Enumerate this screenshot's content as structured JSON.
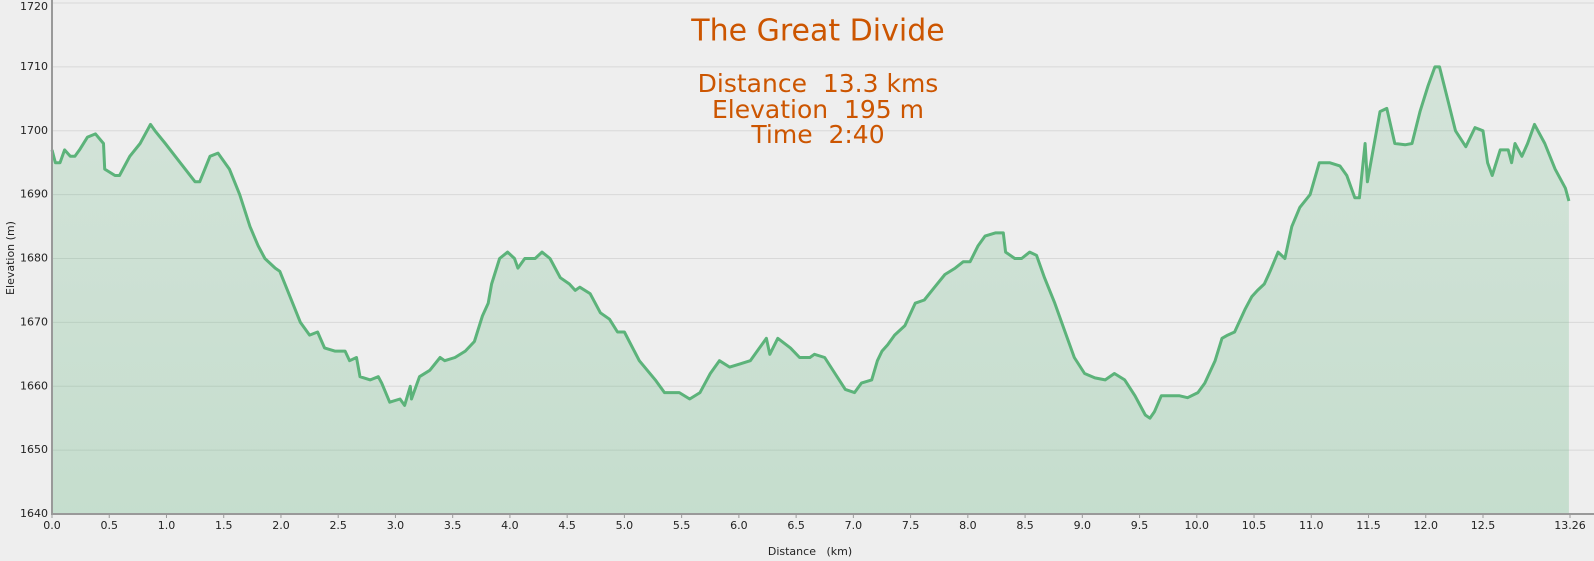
{
  "chart_data": {
    "type": "area",
    "title": "The Great Divide",
    "annotations": [
      "Distance  13.3 kms",
      "Elevation  195 m",
      "Time  2:40"
    ],
    "x_label": "Distance   (km)",
    "y_label": "Elevation (m)",
    "color": "#5cb37a",
    "grid": true,
    "xlim": [
      0,
      13.26
    ],
    "ylim": [
      1640,
      1720
    ],
    "yticks": [
      1640,
      1650,
      1660,
      1670,
      1680,
      1690,
      1700,
      1710,
      1720
    ],
    "xticks": [
      {
        "value": 0,
        "label": "0.0"
      },
      0.5,
      {
        "value": 1,
        "label": "1.0"
      },
      1.5,
      {
        "value": 2,
        "label": "2.0"
      },
      2.5,
      {
        "value": 3,
        "label": "3.0"
      },
      3.5,
      {
        "value": 4,
        "label": "4.0"
      },
      4.5,
      {
        "value": 5,
        "label": "5.0"
      },
      5.5,
      {
        "value": 6,
        "label": "6.0"
      },
      6.5,
      {
        "value": 7,
        "label": "7.0"
      },
      7.5,
      {
        "value": 8,
        "label": "8.0"
      },
      8.5,
      {
        "value": 9,
        "label": "9.0"
      },
      9.5,
      {
        "value": 10,
        "label": "10.0"
      },
      10.5,
      {
        "value": 11,
        "label": "11.0"
      },
      11.5,
      {
        "value": 12,
        "label": "12.0"
      },
      12.5,
      13.26
    ],
    "x": [
      0,
      0.03,
      0.07,
      0.11,
      0.16,
      0.2,
      0.24,
      0.31,
      0.38,
      0.45,
      0.46,
      0.55,
      0.59,
      0.68,
      0.77,
      0.86,
      0.9,
      0.99,
      1.12,
      1.25,
      1.29,
      1.38,
      1.45,
      1.55,
      1.64,
      1.73,
      1.8,
      1.86,
      1.95,
      1.99,
      2.08,
      2.17,
      2.25,
      2.32,
      2.38,
      2.47,
      2.56,
      2.6,
      2.66,
      2.69,
      2.78,
      2.85,
      2.88,
      2.95,
      3.04,
      3.08,
      3.13,
      3.14,
      3.21,
      3.3,
      3.39,
      3.43,
      3.52,
      3.61,
      3.69,
      3.76,
      3.81,
      3.84,
      3.91,
      3.98,
      4.04,
      4.07,
      4.13,
      4.22,
      4.28,
      4.35,
      4.44,
      4.52,
      4.57,
      4.61,
      4.7,
      4.79,
      4.87,
      4.94,
      5.0,
      5.13,
      5.27,
      5.35,
      5.44,
      5.48,
      5.57,
      5.66,
      5.75,
      5.83,
      5.92,
      6.01,
      6.1,
      6.18,
      6.24,
      6.27,
      6.34,
      6.45,
      6.53,
      6.62,
      6.66,
      6.75,
      6.84,
      6.93,
      7.01,
      7.07,
      7.16,
      7.21,
      7.25,
      7.3,
      7.36,
      7.45,
      7.54,
      7.62,
      7.71,
      7.8,
      7.89,
      7.96,
      8.02,
      8.09,
      8.15,
      8.24,
      8.31,
      8.33,
      8.41,
      8.47,
      8.54,
      8.6,
      8.67,
      8.76,
      8.85,
      8.93,
      9.02,
      9.11,
      9.2,
      9.28,
      9.37,
      9.46,
      9.55,
      9.59,
      9.63,
      9.69,
      9.76,
      9.85,
      9.92,
      10.01,
      10.07,
      10.16,
      10.22,
      10.27,
      10.33,
      10.42,
      10.48,
      10.53,
      10.59,
      10.64,
      10.71,
      10.77,
      10.83,
      10.9,
      10.99,
      11.07,
      11.16,
      11.25,
      11.31,
      11.38,
      11.42,
      11.47,
      11.49,
      11.54,
      11.6,
      11.66,
      11.73,
      11.82,
      11.88,
      11.95,
      12.02,
      12.08,
      12.12,
      12.19,
      12.26,
      12.35,
      12.43,
      12.5,
      12.54,
      12.58,
      12.65,
      12.72,
      12.75,
      12.78,
      12.84,
      12.89,
      12.95,
      13.04,
      13.13,
      13.22,
      13.25
    ],
    "values": [
      1697,
      1695,
      1695,
      1697,
      1696,
      1696,
      1697,
      1699,
      1699.5,
      1698,
      1694,
      1693,
      1693,
      1696,
      1698,
      1701,
      1700,
      1698,
      1695,
      1692,
      1692,
      1696,
      1696.5,
      1694,
      1690,
      1685,
      1682,
      1680,
      1678.5,
      1678,
      1674,
      1670,
      1668,
      1668.5,
      1666,
      1665.5,
      1665.5,
      1664,
      1664.5,
      1661.5,
      1661,
      1661.5,
      1660.5,
      1657.5,
      1658,
      1657,
      1660,
      1658,
      1661.5,
      1662.5,
      1664.5,
      1664,
      1664.5,
      1665.5,
      1667,
      1671,
      1673,
      1676,
      1680,
      1681,
      1680,
      1678.5,
      1680,
      1680,
      1681,
      1680,
      1677,
      1676,
      1675,
      1675.5,
      1674.5,
      1671.5,
      1670.5,
      1668.5,
      1668.5,
      1664,
      1661,
      1659,
      1659,
      1659,
      1658,
      1659,
      1662,
      1664,
      1663,
      1663.5,
      1664,
      1666,
      1667.5,
      1665,
      1667.5,
      1666,
      1664.5,
      1664.5,
      1665,
      1664.5,
      1662,
      1659.5,
      1659,
      1660.5,
      1661,
      1664,
      1665.5,
      1666.5,
      1668,
      1669.5,
      1673,
      1673.5,
      1675.5,
      1677.5,
      1678.5,
      1679.5,
      1679.5,
      1682,
      1683.5,
      1684,
      1684,
      1681,
      1680,
      1680,
      1681,
      1680.5,
      1677,
      1673,
      1668.5,
      1664.5,
      1662,
      1661.3,
      1661,
      1662,
      1661,
      1658.5,
      1655.5,
      1655,
      1656,
      1658.5,
      1658.5,
      1658.5,
      1658.2,
      1659,
      1660.5,
      1664,
      1667.5,
      1668,
      1668.5,
      1672,
      1674,
      1675,
      1676,
      1678,
      1681,
      1680,
      1685,
      1688,
      1690,
      1695,
      1695,
      1694.5,
      1693,
      1689.5,
      1689.5,
      1698,
      1692,
      1697,
      1703,
      1703.5,
      1698,
      1697.8,
      1698,
      1703,
      1707,
      1710,
      1710,
      1705,
      1700,
      1697.5,
      1700.5,
      1700,
      1695,
      1693,
      1697,
      1697,
      1695,
      1698,
      1696,
      1698,
      1701,
      1698,
      1694,
      1691,
      1689
    ]
  }
}
